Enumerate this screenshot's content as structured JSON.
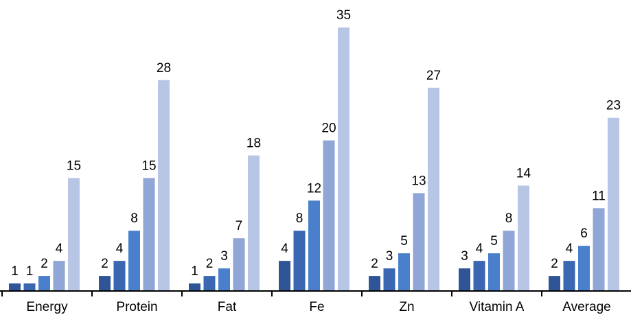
{
  "chart_data": {
    "type": "bar",
    "categories": [
      "Energy",
      "Protein",
      "Fat",
      "Fe",
      "Zn",
      "Vitamin A",
      "Average"
    ],
    "series": [
      {
        "values": [
          1,
          2,
          1,
          4,
          2,
          3,
          2
        ],
        "color": "#2f5597"
      },
      {
        "values": [
          1,
          4,
          2,
          8,
          3,
          4,
          4
        ],
        "color": "#3a66b2"
      },
      {
        "values": [
          2,
          8,
          3,
          12,
          5,
          5,
          6
        ],
        "color": "#4a7fcb"
      },
      {
        "values": [
          4,
          15,
          7,
          20,
          13,
          8,
          11
        ],
        "color": "#8fa6d7"
      },
      {
        "values": [
          15,
          28,
          18,
          35,
          27,
          14,
          23
        ],
        "color": "#b8c6e5"
      }
    ],
    "title": "",
    "xlabel": "",
    "ylabel": "",
    "ylim": [
      0,
      35
    ],
    "grid": false,
    "data_labels": true
  }
}
